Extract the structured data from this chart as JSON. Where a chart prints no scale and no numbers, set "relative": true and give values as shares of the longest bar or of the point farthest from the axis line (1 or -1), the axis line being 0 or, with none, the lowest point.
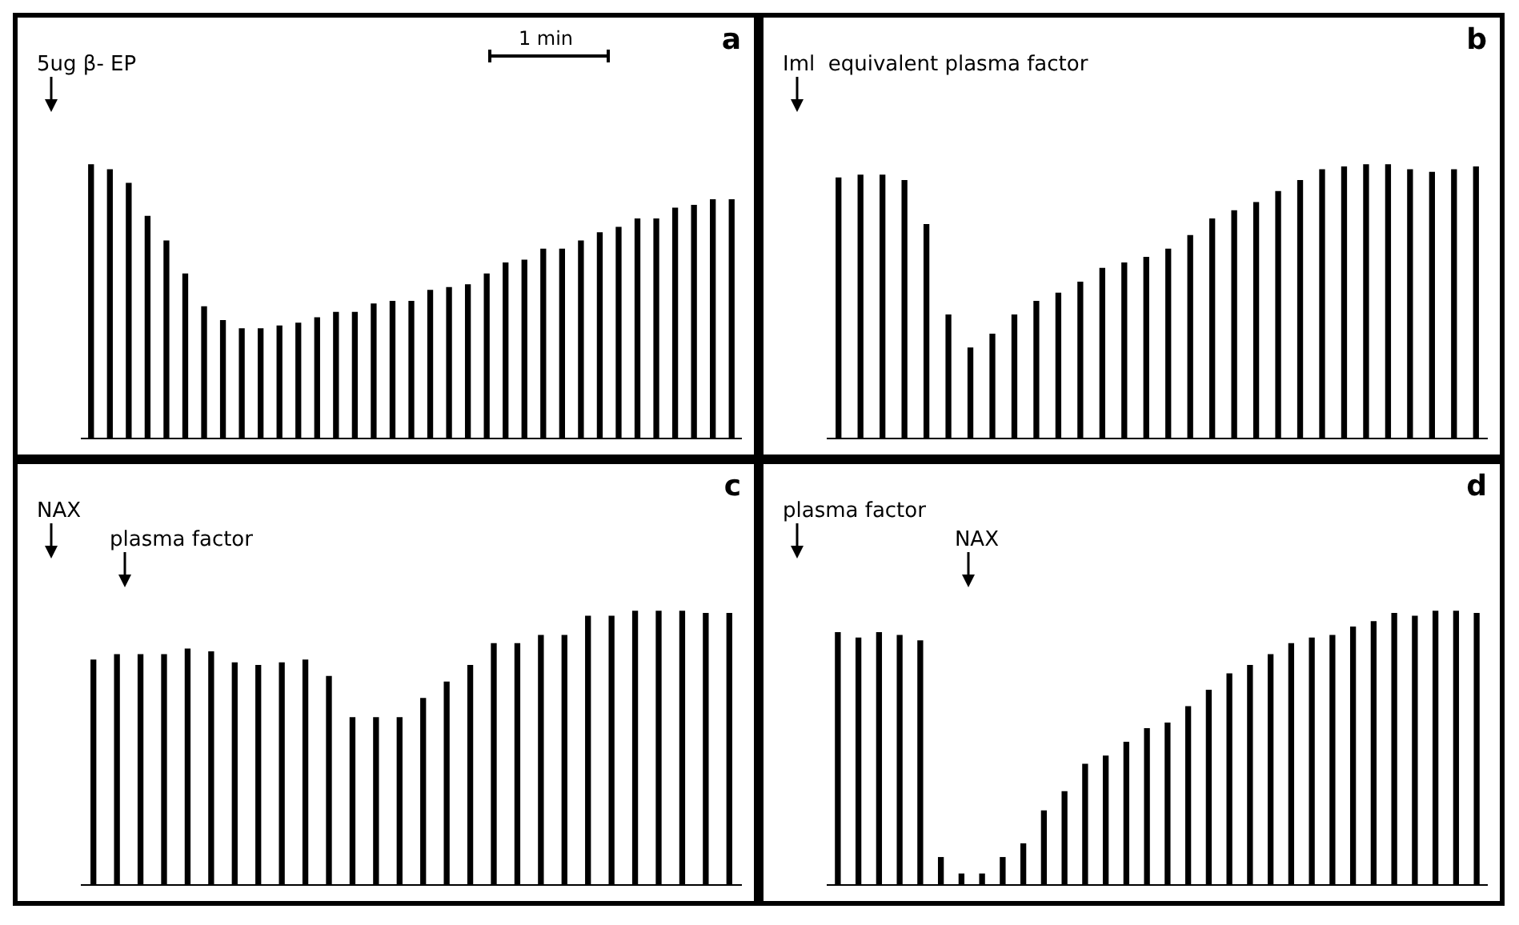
{
  "chart_data": [
    {
      "type": "bar",
      "title": "a",
      "subtitle": "1 min",
      "relative": true,
      "color": "#000000",
      "annotations": [
        "5ug β- EP"
      ],
      "categories": [
        null,
        null,
        null,
        null,
        null,
        null,
        null,
        null,
        null,
        null,
        null,
        null,
        null,
        null,
        null,
        null,
        null,
        null,
        null,
        null,
        null,
        null,
        null,
        null,
        null,
        null,
        null,
        null,
        null,
        null,
        null,
        null,
        null,
        null,
        null
      ],
      "values": [
        1.0,
        0.98,
        0.93,
        0.81,
        0.72,
        0.6,
        0.48,
        0.43,
        0.4,
        0.4,
        0.41,
        0.42,
        0.44,
        0.46,
        0.46,
        0.49,
        0.5,
        0.5,
        0.54,
        0.55,
        0.56,
        0.6,
        0.64,
        0.65,
        0.69,
        0.69,
        0.72,
        0.75,
        0.77,
        0.8,
        0.8,
        0.84,
        0.85,
        0.87,
        0.87
      ]
    },
    {
      "type": "bar",
      "title": "b",
      "relative": true,
      "color": "#000000",
      "annotations": [
        "Iml  equivalent plasma factor"
      ],
      "categories": [
        null,
        null,
        null,
        null,
        null,
        null,
        null,
        null,
        null,
        null,
        null,
        null,
        null,
        null,
        null,
        null,
        null,
        null,
        null,
        null,
        null,
        null,
        null,
        null,
        null,
        null,
        null,
        null,
        null,
        null
      ],
      "values": [
        0.95,
        0.96,
        0.96,
        0.94,
        0.78,
        0.45,
        0.33,
        0.38,
        0.45,
        0.5,
        0.53,
        0.57,
        0.62,
        0.64,
        0.66,
        0.69,
        0.74,
        0.8,
        0.83,
        0.86,
        0.9,
        0.94,
        0.98,
        0.99,
        1.0,
        1.0,
        0.98,
        0.97,
        0.98,
        0.99
      ]
    },
    {
      "type": "bar",
      "title": "c",
      "relative": true,
      "color": "#000000",
      "annotations": [
        "NAX",
        "plasma factor"
      ],
      "categories": [
        null,
        null,
        null,
        null,
        null,
        null,
        null,
        null,
        null,
        null,
        null,
        null,
        null,
        null,
        null,
        null,
        null,
        null,
        null,
        null,
        null,
        null,
        null,
        null,
        null,
        null,
        null,
        null
      ],
      "values": [
        0.82,
        0.84,
        0.84,
        0.84,
        0.86,
        0.85,
        0.81,
        0.8,
        0.81,
        0.82,
        0.76,
        0.61,
        0.61,
        0.61,
        0.68,
        0.74,
        0.8,
        0.88,
        0.88,
        0.91,
        0.91,
        0.98,
        0.98,
        1.0,
        1.0,
        1.0,
        0.99,
        0.99
      ]
    },
    {
      "type": "bar",
      "title": "d",
      "relative": true,
      "color": "#000000",
      "annotations": [
        "plasma factor",
        "NAX"
      ],
      "categories": [
        null,
        null,
        null,
        null,
        null,
        null,
        null,
        null,
        null,
        null,
        null,
        null,
        null,
        null,
        null,
        null,
        null,
        null,
        null,
        null,
        null,
        null,
        null,
        null,
        null,
        null,
        null,
        null,
        null,
        null,
        null,
        null
      ],
      "values": [
        0.92,
        0.9,
        0.92,
        0.91,
        0.89,
        0.1,
        0.04,
        0.04,
        0.1,
        0.15,
        0.27,
        0.34,
        0.44,
        0.47,
        0.52,
        0.57,
        0.59,
        0.65,
        0.71,
        0.77,
        0.8,
        0.84,
        0.88,
        0.9,
        0.91,
        0.94,
        0.96,
        0.99,
        0.98,
        1.0,
        1.0,
        0.99
      ]
    }
  ]
}
